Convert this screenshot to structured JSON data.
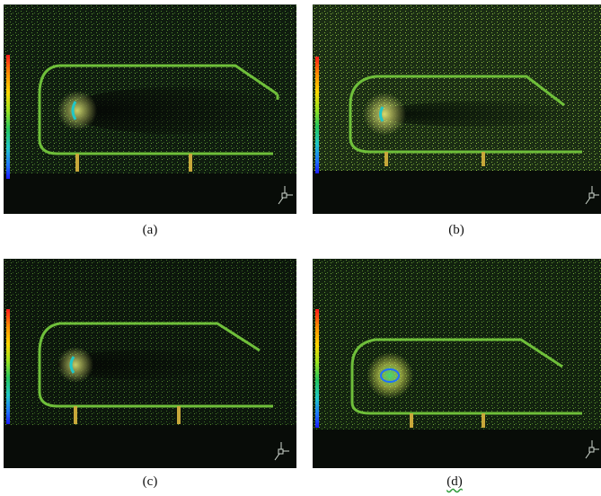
{
  "figure": {
    "panels": [
      {
        "id": "a",
        "caption": "(a)"
      },
      {
        "id": "b",
        "caption": "(b)"
      },
      {
        "id": "c",
        "caption": "(c)"
      },
      {
        "id": "d",
        "caption": "(d)"
      }
    ],
    "colormap": [
      "#ff1a1a",
      "#ff8c00",
      "#ffd400",
      "#9be21c",
      "#22c55e",
      "#1fc7c7",
      "#1e6fff",
      "#1c1cff"
    ],
    "colors": {
      "background": "#0e1a0e",
      "noise": "#3d6b2a",
      "outline": "#6fbf3a",
      "glow": "#d9e35a"
    }
  }
}
